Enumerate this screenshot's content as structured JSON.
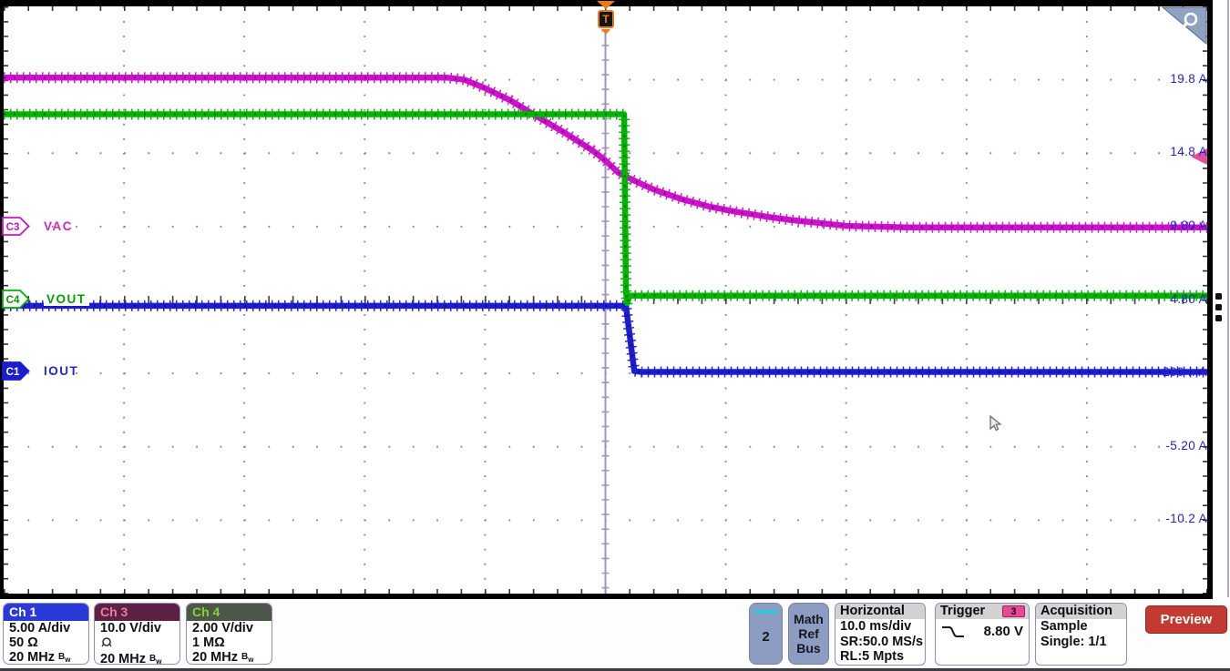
{
  "scope": {
    "trigger_marker_label": "T",
    "axis_label_color": "#2323cc",
    "trigger_level_color": "#e0509a",
    "trigger_level_value": 8.8,
    "y_axis_labels": [
      {
        "text": "19.8 A",
        "div": 1
      },
      {
        "text": "14.8 A",
        "div": 2
      },
      {
        "text": "9.80 A",
        "div": 3
      },
      {
        "text": "4.80 A",
        "div": 4
      },
      {
        "text": "-200 mA",
        "div": 5
      },
      {
        "text": "-5.20 A",
        "div": 6
      },
      {
        "text": "-10.2 A",
        "div": 7
      }
    ],
    "channel_markers": [
      {
        "id": "C3",
        "label": "VAC",
        "color": "#cc14cc",
        "fill": "#ffffff",
        "id_color": "#cc14cc",
        "label_color": "#cc2cb0",
        "top": 238,
        "label_bg": ""
      },
      {
        "id": "C4",
        "label": "VOUT",
        "color": "#00b400",
        "fill": "#ffffff",
        "id_color": "#009900",
        "label_color": "#00a000",
        "top": 318,
        "label_bg": "#ffffff"
      },
      {
        "id": "C1",
        "label": "IOUT",
        "color": "#1c1cd2",
        "fill": "#1c1cd2",
        "id_color": "#ffffff",
        "label_color": "#2828cc",
        "top": 397,
        "label_bg": ""
      }
    ]
  },
  "chart_data": {
    "type": "line",
    "title": "",
    "x_axis": {
      "unit": "ms",
      "range": [
        -50,
        50
      ],
      "per_div": "10.0 ms/div",
      "trigger_t": 0
    },
    "layout": {
      "h_divs": 10,
      "v_divs": 8,
      "minor_per_div": 5,
      "grid": "dotted",
      "legend": "none"
    },
    "series": [
      {
        "name": "VAC",
        "channel": "Ch 3",
        "unit": "V",
        "color": "#cc10cc",
        "v_per_div": 10.0,
        "value_at_top": 29.3,
        "z": 1,
        "points": [
          [
            -50,
            19.6
          ],
          [
            -13.2,
            19.6
          ],
          [
            -11.7,
            19.3
          ],
          [
            -10.2,
            18.3
          ],
          [
            -7.9,
            16.5
          ],
          [
            -5.7,
            14.3
          ],
          [
            -3.4,
            12.1
          ],
          [
            -1.1,
            9.7
          ],
          [
            0,
            8.3
          ],
          [
            1.1,
            6.6
          ],
          [
            2.6,
            5.4
          ],
          [
            4.1,
            4.3
          ],
          [
            6.4,
            3.0
          ],
          [
            8.7,
            2.0
          ],
          [
            10.9,
            1.3
          ],
          [
            13.2,
            0.7
          ],
          [
            15.4,
            0.2
          ],
          [
            17.7,
            -0.2
          ],
          [
            20,
            -0.6
          ],
          [
            25,
            -0.8
          ],
          [
            50,
            -0.8
          ]
        ]
      },
      {
        "name": "IOUT",
        "channel": "Ch 1",
        "unit": "A",
        "color": "#1c1cd2",
        "v_per_div": 5.0,
        "value_at_top": 24.8,
        "z": 2,
        "points": [
          [
            -50,
            4.4
          ],
          [
            1.7,
            4.4
          ],
          [
            2.4,
            -0.05
          ],
          [
            3,
            -0.1
          ],
          [
            50,
            -0.1
          ]
        ]
      },
      {
        "name": "VOUT",
        "channel": "Ch 4",
        "unit": "V",
        "color": "#00b400",
        "v_per_div": 2.0,
        "value_at_top": 7.94,
        "z": 3,
        "points": [
          [
            -50,
            5.0
          ],
          [
            1.55,
            5.0
          ],
          [
            1.7,
            0.2
          ],
          [
            1.8,
            -0.15
          ],
          [
            2.0,
            0.06
          ],
          [
            50,
            0.06
          ]
        ]
      }
    ]
  },
  "bottom_bar": {
    "bw_b": "B",
    "bw_w": "w",
    "ch1": {
      "label": "Ch 1",
      "scale": "5.00 A/div",
      "impedance": "50 Ω",
      "bandwidth": "20 MHz",
      "header_bg": "#2a3ad8",
      "header_fg": "#ffffff"
    },
    "ch3": {
      "label": "Ch 3",
      "scale": "10.0 V/div",
      "coupling_icon": "probe-icon",
      "bandwidth": "20 MHz",
      "header_bg": "#5c2144",
      "header_fg": "#e87ca8"
    },
    "ch4": {
      "label": "Ch 4",
      "scale": "2.00 V/div",
      "impedance": "1 MΩ",
      "bandwidth": "20 MHz",
      "header_bg": "#4d5749",
      "header_fg": "#86d42e"
    },
    "add_channel_2": {
      "label": "2",
      "accent": "#2cc8dc"
    },
    "math_ref_bus": {
      "lines": [
        "Math",
        "Ref",
        "Bus"
      ]
    },
    "horizontal": {
      "title": "Horizontal",
      "rows": [
        "10.0 ms/div",
        "SR:50.0 MS/s",
        "RL:5 Mpts"
      ]
    },
    "trigger": {
      "title": "Trigger",
      "source": "3",
      "level": "8.80 V",
      "slope": "falling"
    },
    "acquisition": {
      "title": "Acquisition",
      "rows": [
        "Sample",
        "Single: 1/1"
      ]
    },
    "preview": {
      "label": "Preview"
    }
  }
}
